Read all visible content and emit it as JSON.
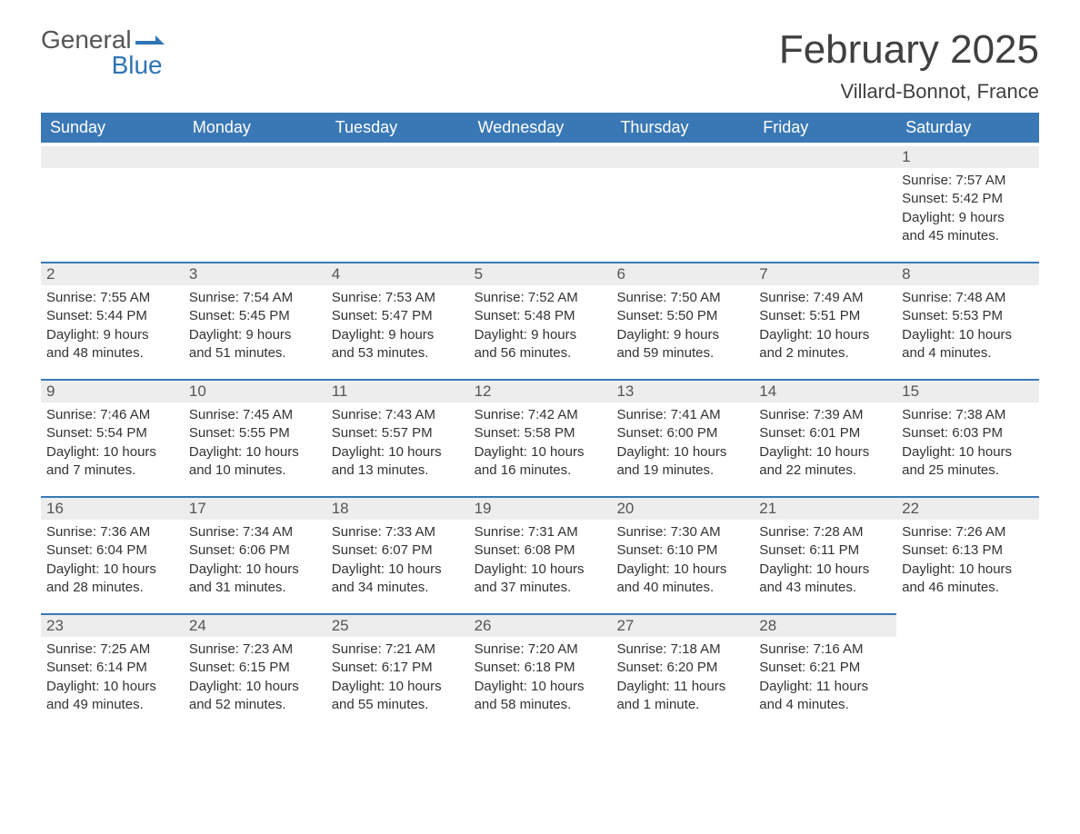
{
  "logo": {
    "text_top": "General",
    "text_bottom": "Blue",
    "accent_color": "#2f75b5"
  },
  "title": "February 2025",
  "location": "Villard-Bonnot, France",
  "colors": {
    "header_bg": "#3a78b5",
    "header_text": "#ffffff",
    "daynum_bg": "#ededed",
    "border_top": "#3a78b5",
    "body_text": "#333333",
    "title_text": "#404040"
  },
  "weekdays": [
    "Sunday",
    "Monday",
    "Tuesday",
    "Wednesday",
    "Thursday",
    "Friday",
    "Saturday"
  ],
  "weeks": [
    [
      {
        "n": "",
        "empty": true
      },
      {
        "n": "",
        "empty": true
      },
      {
        "n": "",
        "empty": true
      },
      {
        "n": "",
        "empty": true
      },
      {
        "n": "",
        "empty": true
      },
      {
        "n": "",
        "empty": true
      },
      {
        "n": "1",
        "sunrise": "Sunrise: 7:57 AM",
        "sunset": "Sunset: 5:42 PM",
        "day1": "Daylight: 9 hours",
        "day2": "and 45 minutes."
      }
    ],
    [
      {
        "n": "2",
        "sunrise": "Sunrise: 7:55 AM",
        "sunset": "Sunset: 5:44 PM",
        "day1": "Daylight: 9 hours",
        "day2": "and 48 minutes."
      },
      {
        "n": "3",
        "sunrise": "Sunrise: 7:54 AM",
        "sunset": "Sunset: 5:45 PM",
        "day1": "Daylight: 9 hours",
        "day2": "and 51 minutes."
      },
      {
        "n": "4",
        "sunrise": "Sunrise: 7:53 AM",
        "sunset": "Sunset: 5:47 PM",
        "day1": "Daylight: 9 hours",
        "day2": "and 53 minutes."
      },
      {
        "n": "5",
        "sunrise": "Sunrise: 7:52 AM",
        "sunset": "Sunset: 5:48 PM",
        "day1": "Daylight: 9 hours",
        "day2": "and 56 minutes."
      },
      {
        "n": "6",
        "sunrise": "Sunrise: 7:50 AM",
        "sunset": "Sunset: 5:50 PM",
        "day1": "Daylight: 9 hours",
        "day2": "and 59 minutes."
      },
      {
        "n": "7",
        "sunrise": "Sunrise: 7:49 AM",
        "sunset": "Sunset: 5:51 PM",
        "day1": "Daylight: 10 hours",
        "day2": "and 2 minutes."
      },
      {
        "n": "8",
        "sunrise": "Sunrise: 7:48 AM",
        "sunset": "Sunset: 5:53 PM",
        "day1": "Daylight: 10 hours",
        "day2": "and 4 minutes."
      }
    ],
    [
      {
        "n": "9",
        "sunrise": "Sunrise: 7:46 AM",
        "sunset": "Sunset: 5:54 PM",
        "day1": "Daylight: 10 hours",
        "day2": "and 7 minutes."
      },
      {
        "n": "10",
        "sunrise": "Sunrise: 7:45 AM",
        "sunset": "Sunset: 5:55 PM",
        "day1": "Daylight: 10 hours",
        "day2": "and 10 minutes."
      },
      {
        "n": "11",
        "sunrise": "Sunrise: 7:43 AM",
        "sunset": "Sunset: 5:57 PM",
        "day1": "Daylight: 10 hours",
        "day2": "and 13 minutes."
      },
      {
        "n": "12",
        "sunrise": "Sunrise: 7:42 AM",
        "sunset": "Sunset: 5:58 PM",
        "day1": "Daylight: 10 hours",
        "day2": "and 16 minutes."
      },
      {
        "n": "13",
        "sunrise": "Sunrise: 7:41 AM",
        "sunset": "Sunset: 6:00 PM",
        "day1": "Daylight: 10 hours",
        "day2": "and 19 minutes."
      },
      {
        "n": "14",
        "sunrise": "Sunrise: 7:39 AM",
        "sunset": "Sunset: 6:01 PM",
        "day1": "Daylight: 10 hours",
        "day2": "and 22 minutes."
      },
      {
        "n": "15",
        "sunrise": "Sunrise: 7:38 AM",
        "sunset": "Sunset: 6:03 PM",
        "day1": "Daylight: 10 hours",
        "day2": "and 25 minutes."
      }
    ],
    [
      {
        "n": "16",
        "sunrise": "Sunrise: 7:36 AM",
        "sunset": "Sunset: 6:04 PM",
        "day1": "Daylight: 10 hours",
        "day2": "and 28 minutes."
      },
      {
        "n": "17",
        "sunrise": "Sunrise: 7:34 AM",
        "sunset": "Sunset: 6:06 PM",
        "day1": "Daylight: 10 hours",
        "day2": "and 31 minutes."
      },
      {
        "n": "18",
        "sunrise": "Sunrise: 7:33 AM",
        "sunset": "Sunset: 6:07 PM",
        "day1": "Daylight: 10 hours",
        "day2": "and 34 minutes."
      },
      {
        "n": "19",
        "sunrise": "Sunrise: 7:31 AM",
        "sunset": "Sunset: 6:08 PM",
        "day1": "Daylight: 10 hours",
        "day2": "and 37 minutes."
      },
      {
        "n": "20",
        "sunrise": "Sunrise: 7:30 AM",
        "sunset": "Sunset: 6:10 PM",
        "day1": "Daylight: 10 hours",
        "day2": "and 40 minutes."
      },
      {
        "n": "21",
        "sunrise": "Sunrise: 7:28 AM",
        "sunset": "Sunset: 6:11 PM",
        "day1": "Daylight: 10 hours",
        "day2": "and 43 minutes."
      },
      {
        "n": "22",
        "sunrise": "Sunrise: 7:26 AM",
        "sunset": "Sunset: 6:13 PM",
        "day1": "Daylight: 10 hours",
        "day2": "and 46 minutes."
      }
    ],
    [
      {
        "n": "23",
        "sunrise": "Sunrise: 7:25 AM",
        "sunset": "Sunset: 6:14 PM",
        "day1": "Daylight: 10 hours",
        "day2": "and 49 minutes."
      },
      {
        "n": "24",
        "sunrise": "Sunrise: 7:23 AM",
        "sunset": "Sunset: 6:15 PM",
        "day1": "Daylight: 10 hours",
        "day2": "and 52 minutes."
      },
      {
        "n": "25",
        "sunrise": "Sunrise: 7:21 AM",
        "sunset": "Sunset: 6:17 PM",
        "day1": "Daylight: 10 hours",
        "day2": "and 55 minutes."
      },
      {
        "n": "26",
        "sunrise": "Sunrise: 7:20 AM",
        "sunset": "Sunset: 6:18 PM",
        "day1": "Daylight: 10 hours",
        "day2": "and 58 minutes."
      },
      {
        "n": "27",
        "sunrise": "Sunrise: 7:18 AM",
        "sunset": "Sunset: 6:20 PM",
        "day1": "Daylight: 11 hours",
        "day2": "and 1 minute."
      },
      {
        "n": "28",
        "sunrise": "Sunrise: 7:16 AM",
        "sunset": "Sunset: 6:21 PM",
        "day1": "Daylight: 11 hours",
        "day2": "and 4 minutes."
      },
      {
        "n": "",
        "empty": true,
        "noBar": true
      }
    ]
  ]
}
